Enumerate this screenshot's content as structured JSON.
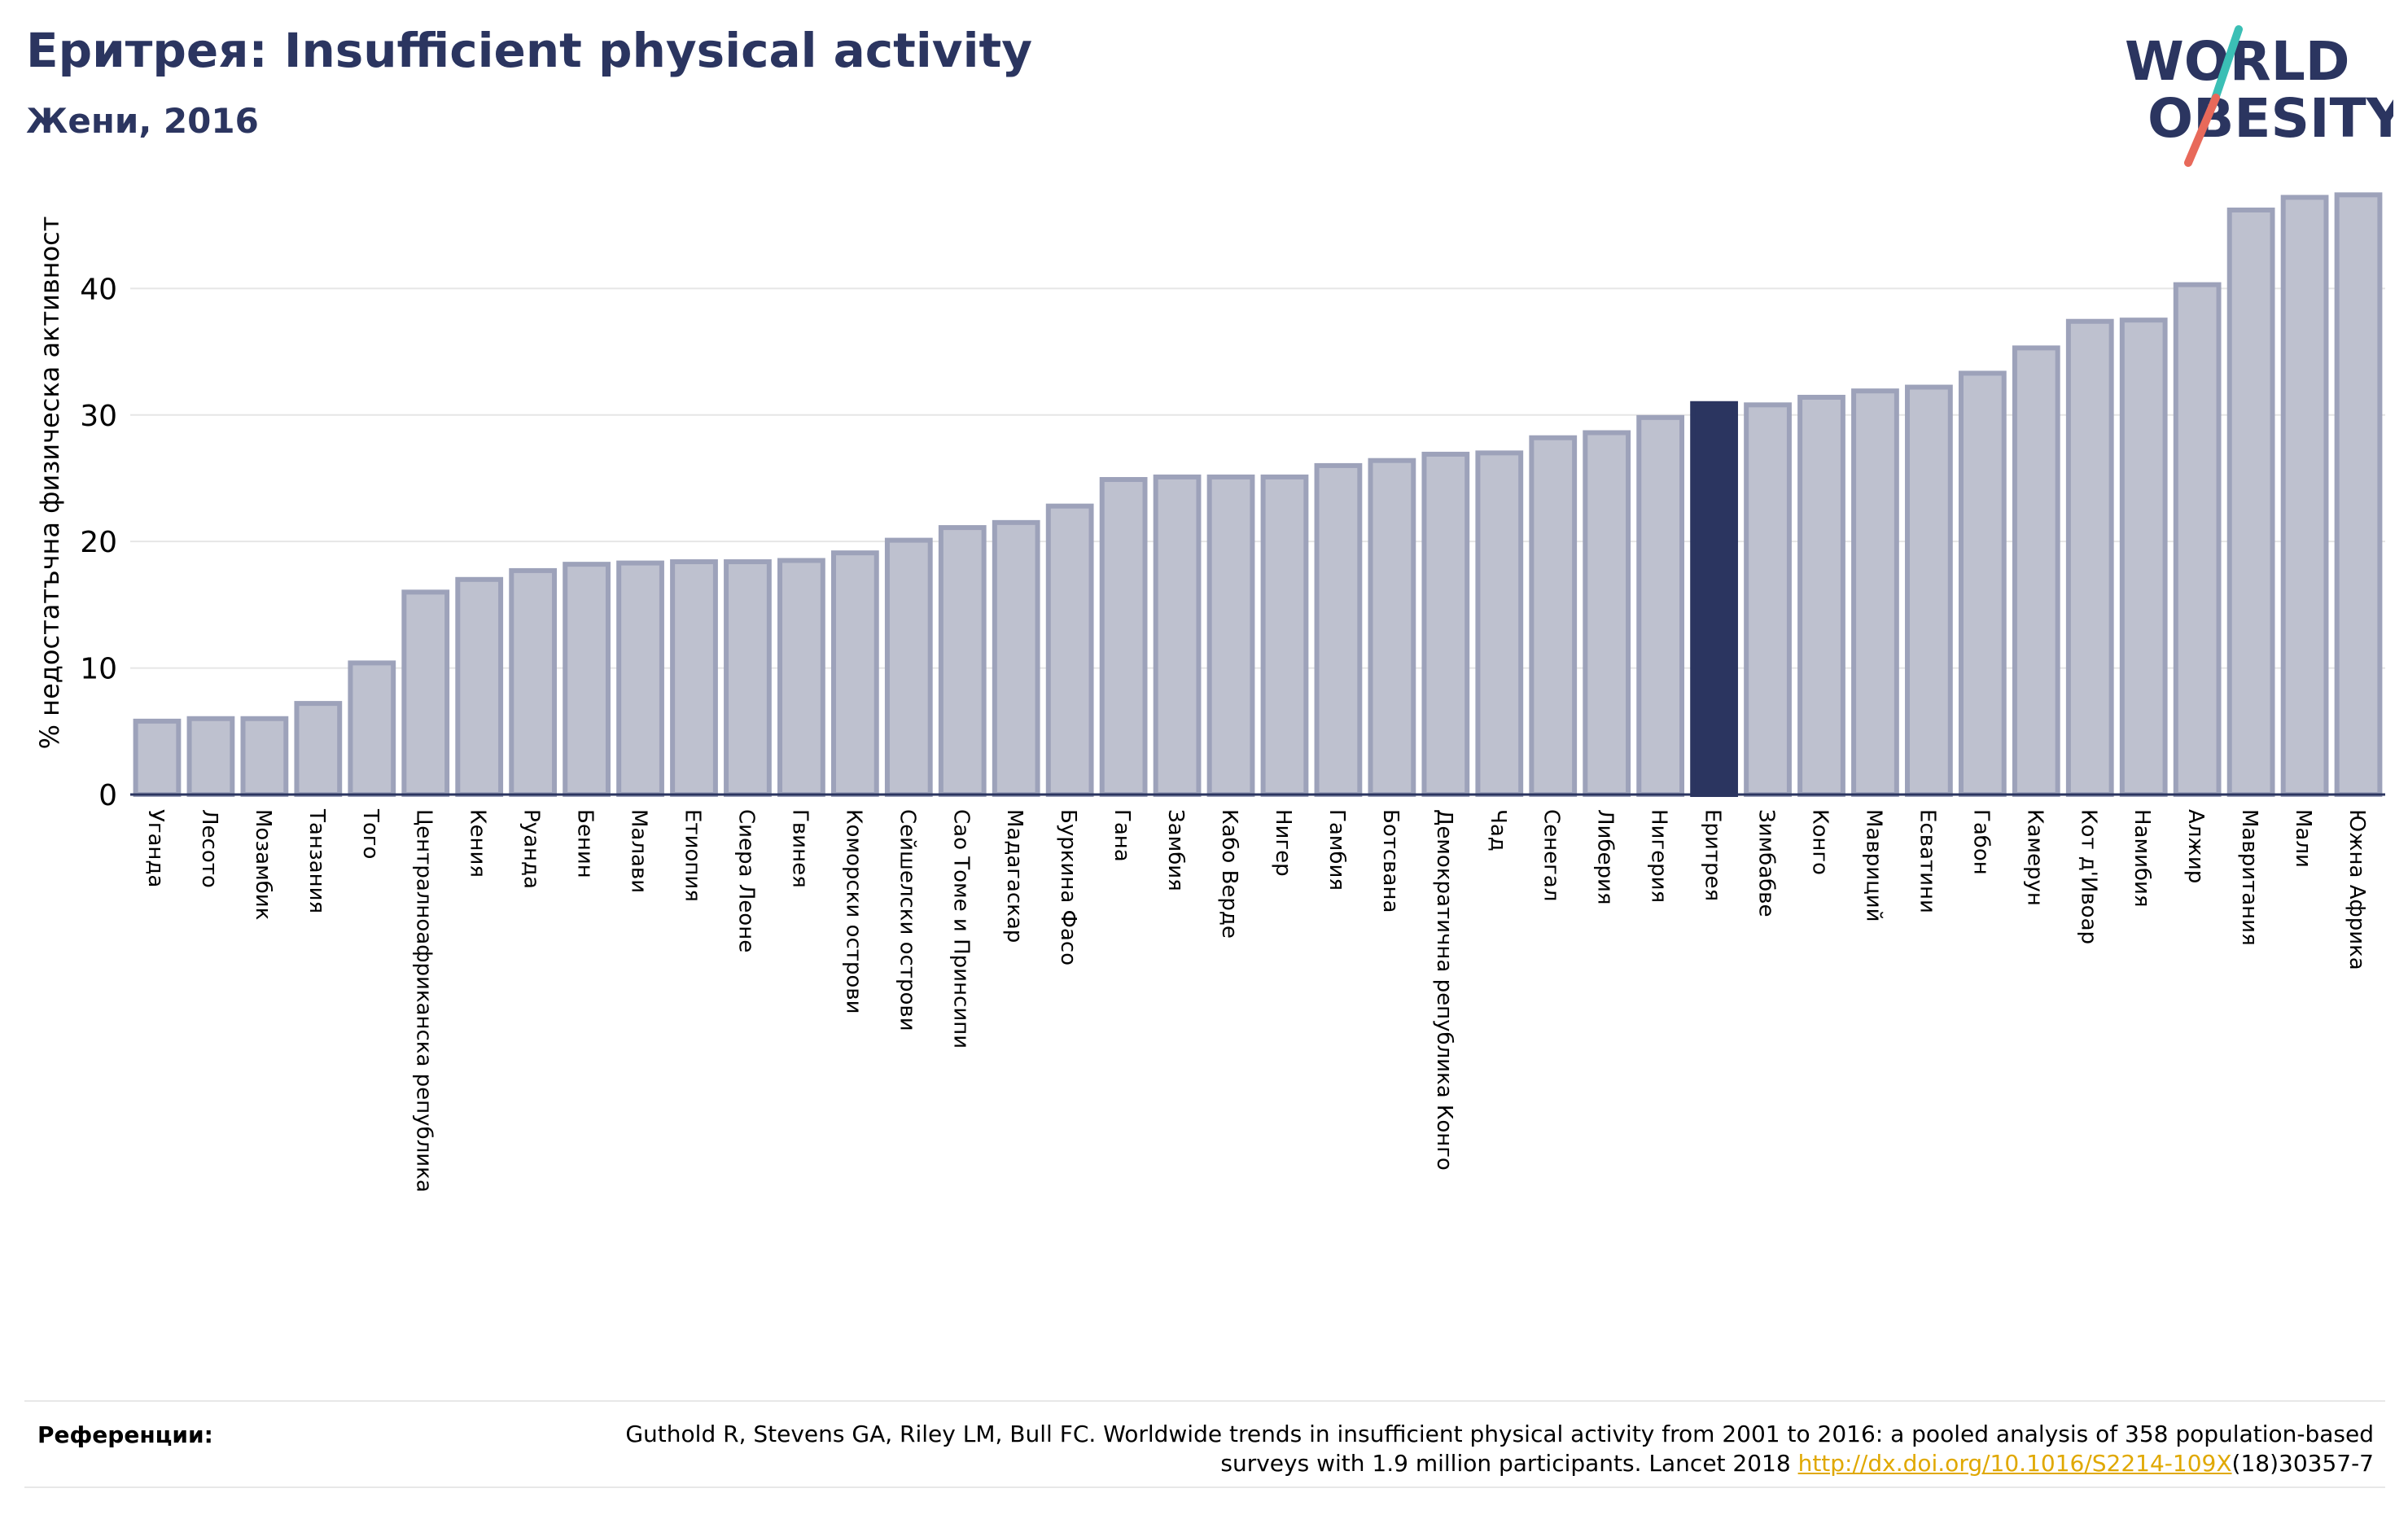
{
  "header": {
    "title": "Еритрея: Insufficient physical activity",
    "subtitle": "Жени, 2016"
  },
  "logo": {
    "line1": "WORLD",
    "line2": "OBESITY"
  },
  "colors": {
    "bar_fill": "#bec1cf",
    "bar_stroke": "#9da2ba",
    "highlight": "#2b3560",
    "text": "#2b3560",
    "logo_teal": "#3bbfb5",
    "logo_red": "#e8695a",
    "link": "#e0a800"
  },
  "chart_data": {
    "type": "bar",
    "title": "Еритрея: Insufficient physical activity",
    "subtitle": "Жени, 2016",
    "ylabel": "% недостатъчна физическа активност",
    "xlabel": "",
    "ylim": [
      0,
      48
    ],
    "yticks": [
      0,
      10,
      20,
      30,
      40
    ],
    "grid": true,
    "highlight": "Еритрея",
    "categories": [
      "Уганда",
      "Лесото",
      "Мозамбик",
      "Танзания",
      "Того",
      "Централноафриканска република",
      "Кения",
      "Руанда",
      "Бенин",
      "Малави",
      "Етиопия",
      "Сиера Леоне",
      "Гвинея",
      "Коморски острови",
      "Сейшелски острови",
      "Сао Томе и Принсипи",
      "Мадагаскар",
      "Буркина Фасо",
      "Гана",
      "Замбия",
      "Кабо Верде",
      "Нигер",
      "Гамбия",
      "Ботсвана",
      "Демократична република Конго",
      "Чад",
      "Сенегал",
      "Либерия",
      "Нигерия",
      "Еритрея",
      "Зимбабве",
      "Конго",
      "Мавриций",
      "Есватини",
      "Габон",
      "Камерун",
      "Кот д'Ивоар",
      "Намибия",
      "Алжир",
      "Мавритания",
      "Мали",
      "Южна Африка"
    ],
    "values": [
      5.8,
      6.0,
      6.0,
      7.2,
      10.4,
      16.0,
      17.0,
      17.7,
      18.2,
      18.3,
      18.4,
      18.4,
      18.5,
      19.1,
      20.1,
      21.1,
      21.5,
      22.8,
      24.9,
      25.1,
      25.1,
      25.1,
      26.0,
      26.4,
      26.9,
      27.0,
      28.2,
      28.6,
      29.8,
      30.9,
      30.8,
      31.4,
      31.9,
      32.2,
      33.3,
      35.3,
      37.4,
      37.5,
      40.3,
      46.2,
      47.2,
      47.4
    ]
  },
  "references": {
    "label": "Референции:",
    "text_before": "Guthold R, Stevens GA, Riley LM, Bull FC. Worldwide trends in insufficient physical activity from 2001 to 2016: a pooled analysis of 358 population-based surveys with 1.9 million participants. Lancet 2018 ",
    "link": "http://dx.doi.org/10.1016/S2214-109X",
    "text_after": "(18)30357-7"
  }
}
